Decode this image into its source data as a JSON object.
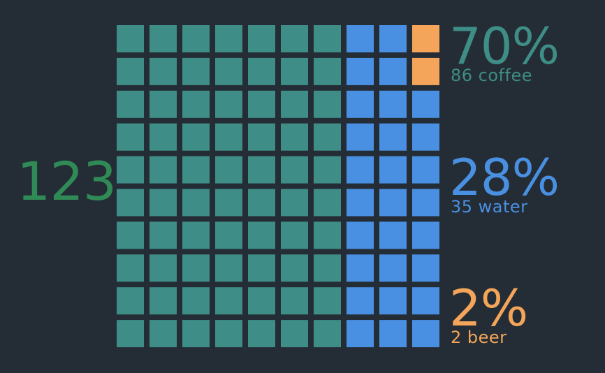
{
  "chart_data": {
    "type": "waffle",
    "total": "123",
    "grid": {
      "rows": 10,
      "cols": 10
    },
    "series": [
      {
        "name": "coffee",
        "count": "86",
        "percent": "70%",
        "cells": 70,
        "color": "#3e8d86"
      },
      {
        "name": "water",
        "count": "35",
        "percent": "28%",
        "cells": 28,
        "color": "#4a90e2"
      },
      {
        "name": "beer",
        "count": "2",
        "percent": "2%",
        "cells": 2,
        "color": "#f5a55a"
      }
    ],
    "labels": {
      "coffee": "86 coffee",
      "water": "35 water",
      "beer": "2 beer"
    },
    "total_color": "#2f8a56"
  }
}
